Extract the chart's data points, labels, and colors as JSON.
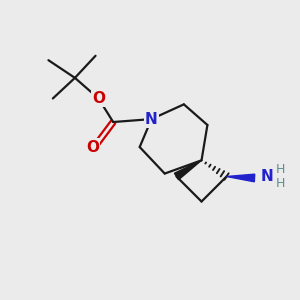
{
  "background_color": "#ebebeb",
  "bond_color": "#1a1a1a",
  "N_color": "#2222cc",
  "O_color": "#cc0000",
  "H_color": "#5a9090",
  "line_width": 1.6,
  "figsize": [
    3.0,
    3.0
  ],
  "dpi": 100,
  "xlim": [
    0,
    10
  ],
  "ylim": [
    0,
    10
  ]
}
